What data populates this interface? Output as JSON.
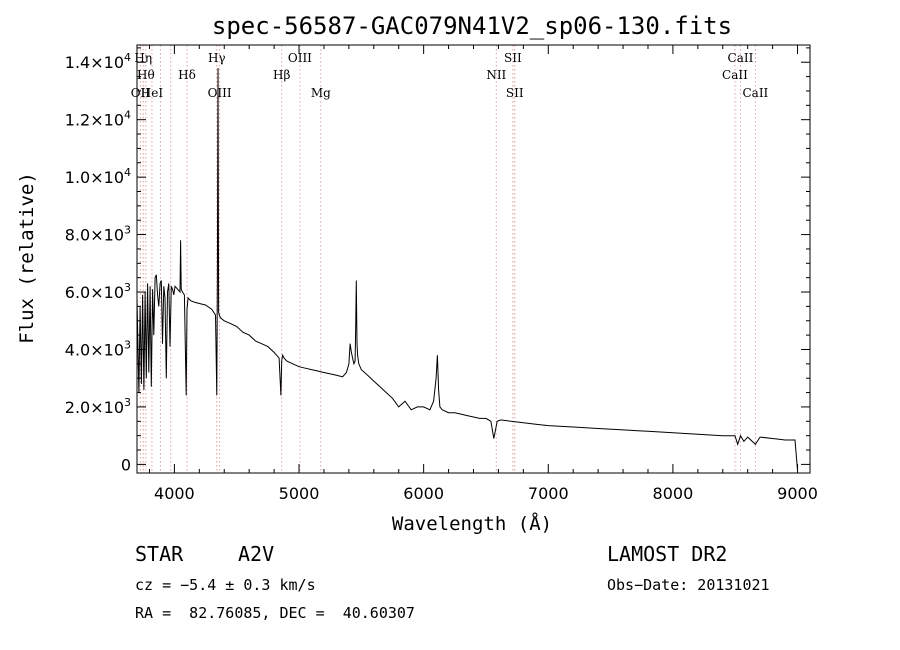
{
  "chart_data": {
    "type": "line",
    "title": "spec-56587-GAC079N41V2_sp06-130.fits",
    "xlabel": "Wavelength (Å)",
    "ylabel": "Flux (relative)",
    "xlim": [
      3700,
      9100
    ],
    "ylim": [
      -300,
      14600
    ],
    "xticks": [
      4000,
      5000,
      6000,
      7000,
      8000,
      9000
    ],
    "yticks": [
      {
        "value": 0,
        "mant": "0",
        "exp": ""
      },
      {
        "value": 2000,
        "mant": "2.0×10",
        "exp": "3"
      },
      {
        "value": 4000,
        "mant": "4.0×10",
        "exp": "3"
      },
      {
        "value": 6000,
        "mant": "6.0×10",
        "exp": "3"
      },
      {
        "value": 8000,
        "mant": "8.0×10",
        "exp": "3"
      },
      {
        "value": 10000,
        "mant": "1.0×10",
        "exp": "4"
      },
      {
        "value": 12000,
        "mant": "1.2×10",
        "exp": "4"
      },
      {
        "value": 14000,
        "mant": "1.4×10",
        "exp": "4"
      }
    ],
    "series": [
      {
        "x": [
          3700,
          3715,
          3725,
          3735,
          3745,
          3755,
          3765,
          3775,
          3785,
          3795,
          3805,
          3815,
          3825,
          3835,
          3845,
          3855,
          3865,
          3875,
          3885,
          3895,
          3905,
          3915,
          3925,
          3935,
          3945,
          3955,
          3965,
          3975,
          3985,
          3995,
          4005,
          4015,
          4025,
          4035,
          4045,
          4050,
          4055,
          4065,
          4080,
          4095,
          4101,
          4110,
          4130,
          4160,
          4200,
          4250,
          4300,
          4330,
          4340,
          4345,
          4350,
          4355,
          4360,
          4370,
          4400,
          4450,
          4500,
          4550,
          4600,
          4650,
          4700,
          4750,
          4800,
          4840,
          4855,
          4861,
          4868,
          4880,
          4900,
          4950,
          5000,
          5050,
          5100,
          5150,
          5200,
          5250,
          5300,
          5350,
          5380,
          5400,
          5410,
          5420,
          5430,
          5440,
          5450,
          5455,
          5460,
          5465,
          5470,
          5480,
          5500,
          5550,
          5600,
          5650,
          5700,
          5750,
          5800,
          5850,
          5900,
          5950,
          6000,
          6050,
          6080,
          6100,
          6110,
          6120,
          6130,
          6150,
          6200,
          6250,
          6300,
          6350,
          6400,
          6450,
          6500,
          6540,
          6563,
          6590,
          6620,
          6700,
          6800,
          6900,
          7000,
          7200,
          7400,
          7600,
          7800,
          8000,
          8200,
          8400,
          8498,
          8520,
          8542,
          8570,
          8600,
          8662,
          8700,
          8800,
          8900,
          8980,
          9000
        ],
        "y": [
          5800,
          2500,
          5500,
          2800,
          5900,
          2600,
          6000,
          3000,
          6300,
          3200,
          6200,
          2700,
          6100,
          4500,
          6500,
          6600,
          5900,
          5500,
          6300,
          6400,
          4200,
          6200,
          5800,
          3000,
          6000,
          6300,
          4100,
          6200,
          6100,
          5900,
          6200,
          6150,
          6100,
          6050,
          6000,
          7800,
          6100,
          6000,
          5900,
          2400,
          5400,
          5800,
          5700,
          5650,
          5600,
          5550,
          5400,
          5200,
          2400,
          6600,
          13800,
          5300,
          5200,
          5100,
          5000,
          4900,
          4800,
          4600,
          4500,
          4300,
          4200,
          4100,
          3900,
          3700,
          2400,
          3600,
          3800,
          3700,
          3600,
          3500,
          3400,
          3350,
          3300,
          3250,
          3200,
          3150,
          3100,
          3050,
          3200,
          3500,
          4200,
          3900,
          3700,
          3500,
          3600,
          4800,
          6400,
          4200,
          3800,
          3500,
          3300,
          3100,
          2900,
          2700,
          2500,
          2300,
          2000,
          2200,
          1900,
          2000,
          2000,
          1900,
          2200,
          3000,
          3800,
          2600,
          2000,
          1900,
          1800,
          1800,
          1750,
          1700,
          1650,
          1600,
          1600,
          1500,
          900,
          1500,
          1550,
          1500,
          1450,
          1400,
          1350,
          1300,
          1250,
          1200,
          1150,
          1100,
          1050,
          1000,
          1000,
          700,
          1000,
          800,
          950,
          700,
          950,
          900,
          850,
          850,
          -200
        ]
      }
    ],
    "line_labels": [
      {
        "x": 3727,
        "name": "OII",
        "row": 3,
        "color": "#000"
      },
      {
        "x": 3750,
        "name": "Hη",
        "row": 1,
        "color": "#000"
      },
      {
        "x": 3771,
        "name": "Hθ",
        "row": 2,
        "color": "#000"
      },
      {
        "x": 3820,
        "name": "HeI",
        "row": 3,
        "color": "#000"
      },
      {
        "x": 3889,
        "name": "",
        "row": 0,
        "color": "#000"
      },
      {
        "x": 3970,
        "name": "",
        "row": 0,
        "color": "#000"
      },
      {
        "x": 4101,
        "name": "Hδ",
        "row": 2,
        "color": "#000"
      },
      {
        "x": 4340,
        "name": "Hγ",
        "row": 1,
        "color": "#000"
      },
      {
        "x": 4363,
        "name": "OIII",
        "row": 3,
        "color": "#000"
      },
      {
        "x": 4861,
        "name": "Hβ",
        "row": 2,
        "color": "#000"
      },
      {
        "x": 5007,
        "name": "OIII",
        "row": 1,
        "color": "#000"
      },
      {
        "x": 5175,
        "name": "Mg",
        "row": 3,
        "color": "#000"
      },
      {
        "x": 6583,
        "name": "NII",
        "row": 2,
        "color": "#000"
      },
      {
        "x": 6716,
        "name": "SII",
        "row": 1,
        "color": "#000"
      },
      {
        "x": 6731,
        "name": "SII",
        "row": 3,
        "color": "#000"
      },
      {
        "x": 8498,
        "name": "CaII",
        "row": 2,
        "color": "#000"
      },
      {
        "x": 8542,
        "name": "CaII",
        "row": 1,
        "color": "#000"
      },
      {
        "x": 8662,
        "name": "CaII",
        "row": 3,
        "color": "#000"
      }
    ],
    "grid": false,
    "colors": {
      "spectrum": "#000000",
      "marker": "#e0a0a0"
    }
  },
  "info": {
    "object_type": "STAR",
    "subclass": "A2V",
    "survey": "LAMOST DR2",
    "cz": "cz = −5.4 ± 0.3 km/s",
    "obs_date": "Obs−Date: 20131021",
    "radec": "RA =  82.76085, DEC =  40.60307"
  }
}
